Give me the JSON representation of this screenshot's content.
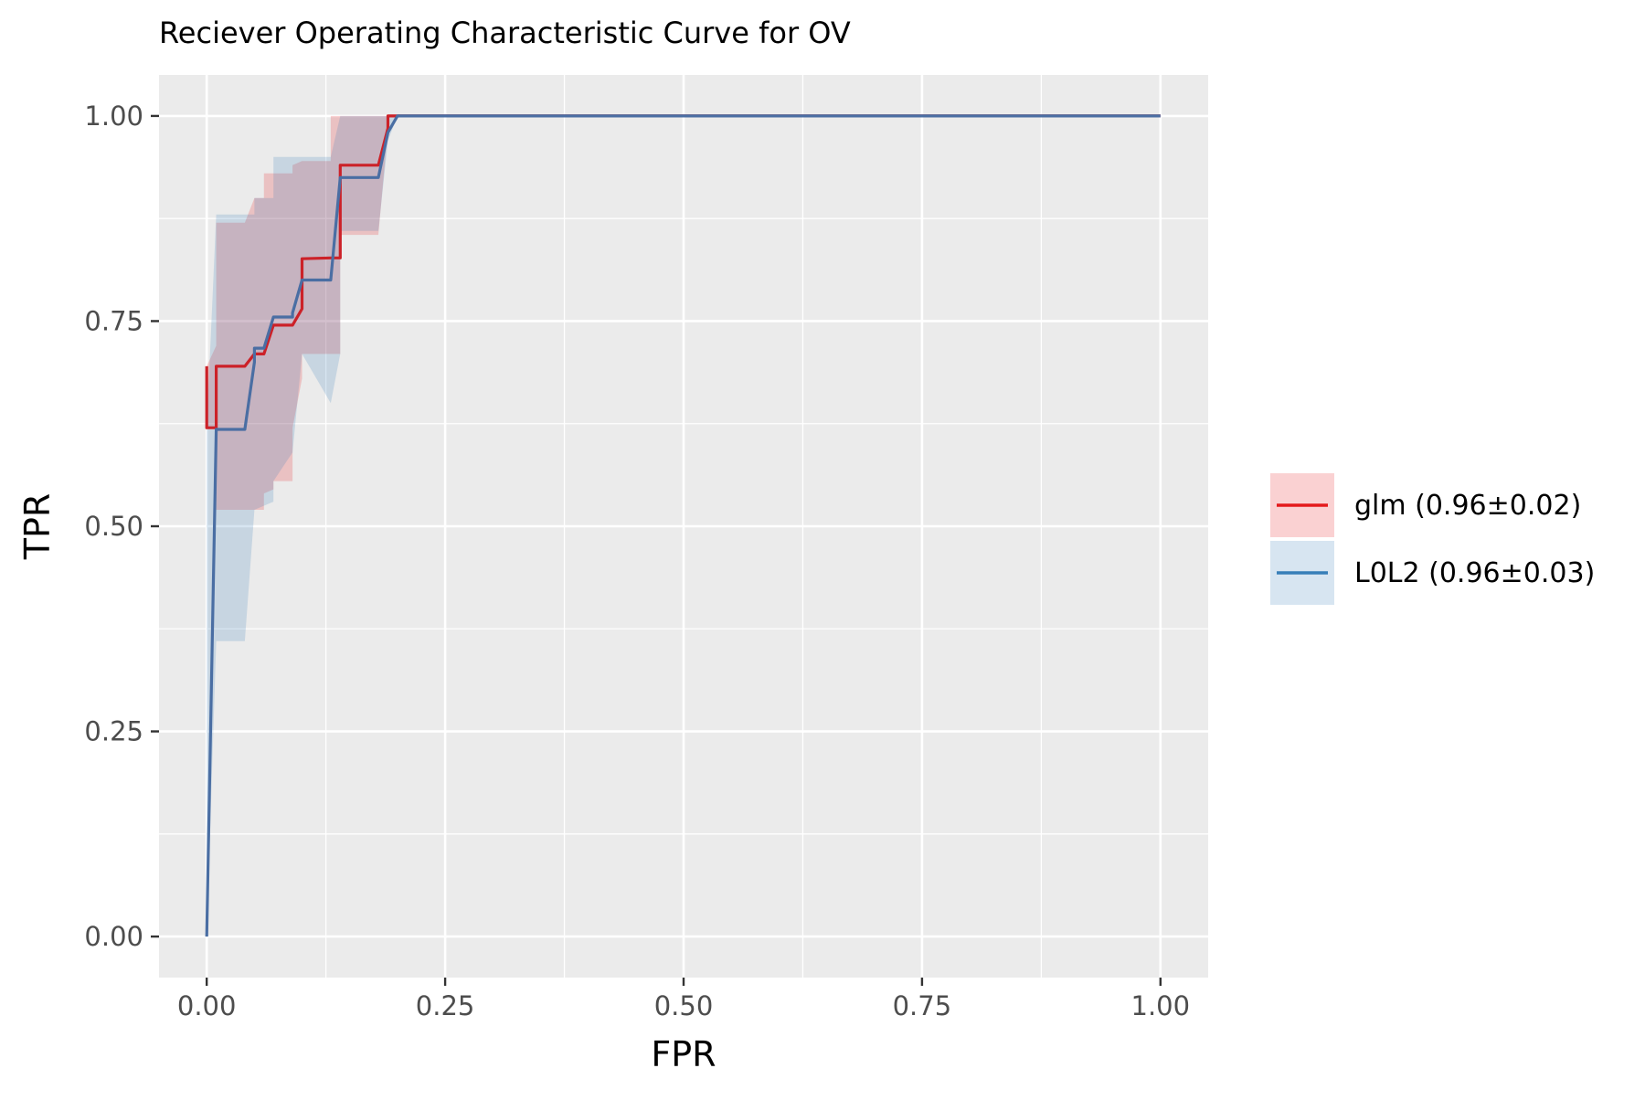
{
  "chart_data": {
    "type": "line",
    "title": "Reciever Operating Characteristic Curve for OV",
    "xlabel": "FPR",
    "ylabel": "TPR",
    "xlim": [
      -0.05,
      1.05
    ],
    "ylim": [
      -0.05,
      1.05
    ],
    "xticks": [
      0,
      0.25,
      0.5,
      0.75,
      1.0
    ],
    "xtick_labels": [
      "0.00",
      "0.25",
      "0.50",
      "0.75",
      "1.00"
    ],
    "yticks": [
      0,
      0.25,
      0.5,
      0.75,
      1.0
    ],
    "ytick_labels": [
      "0.00",
      "0.25",
      "0.50",
      "0.75",
      "1.00"
    ],
    "grid": true,
    "legend_position": "right",
    "series": [
      {
        "name": "glm (0.96±0.02)",
        "color": "#e41a1c",
        "x": [
          0,
          0,
          0.01,
          0.01,
          0.04,
          0.05,
          0.05,
          0.06,
          0.07,
          0.07,
          0.09,
          0.09,
          0.1,
          0.1,
          0.13,
          0.13,
          0.14,
          0.14,
          0.18,
          0.18,
          0.19,
          0.19,
          0.2,
          1.0
        ],
        "y": [
          0.695,
          0.62,
          0.62,
          0.695,
          0.695,
          0.71,
          0.71,
          0.71,
          0.745,
          0.745,
          0.745,
          0.745,
          0.765,
          0.826,
          0.827,
          0.827,
          0.827,
          0.94,
          0.94,
          0.94,
          0.985,
          1.0,
          1.0,
          1.0
        ],
        "band_x": [
          0,
          0.01,
          0.01,
          0.04,
          0.04,
          0.05,
          0.05,
          0.06,
          0.06,
          0.07,
          0.07,
          0.09,
          0.09,
          0.1,
          0.1,
          0.13,
          0.13,
          0.14,
          0.14,
          0.18,
          0.18,
          0.19,
          0.19,
          0.2,
          1.0
        ],
        "band_lower": [
          0.62,
          0.62,
          0.52,
          0.52,
          0.52,
          0.52,
          0.52,
          0.52,
          0.54,
          0.545,
          0.555,
          0.555,
          0.62,
          0.68,
          0.71,
          0.71,
          0.71,
          0.71,
          0.855,
          0.855,
          0.855,
          0.985,
          1.0,
          1.0,
          1.0
        ],
        "band_upper": [
          0.695,
          0.72,
          0.87,
          0.87,
          0.87,
          0.9,
          0.9,
          0.9,
          0.93,
          0.93,
          0.93,
          0.93,
          0.94,
          0.945,
          0.945,
          0.945,
          1.0,
          1.0,
          1.0,
          1.0,
          1.0,
          1.0,
          1.0,
          1.0,
          1.0
        ]
      },
      {
        "name": "L0L2 (0.96±0.03)",
        "color": "#377eb8",
        "x": [
          0,
          0.01,
          0.04,
          0.05,
          0.05,
          0.06,
          0.07,
          0.07,
          0.09,
          0.09,
          0.1,
          0.1,
          0.13,
          0.13,
          0.14,
          0.14,
          0.18,
          0.19,
          0.2,
          1.0
        ],
        "y": [
          0,
          0.618,
          0.618,
          0.7,
          0.717,
          0.717,
          0.755,
          0.755,
          0.755,
          0.76,
          0.8,
          0.8,
          0.8,
          0.8,
          0.925,
          0.925,
          0.925,
          0.98,
          1.0,
          1.0
        ],
        "band_x": [
          0,
          0.01,
          0.01,
          0.04,
          0.04,
          0.05,
          0.05,
          0.07,
          0.07,
          0.09,
          0.09,
          0.1,
          0.1,
          0.13,
          0.13,
          0.14,
          0.14,
          0.18,
          0.18,
          0.19,
          0.2,
          1.0
        ],
        "band_lower": [
          0,
          0.36,
          0.36,
          0.36,
          0.36,
          0.52,
          0.52,
          0.53,
          0.555,
          0.59,
          0.59,
          0.71,
          0.71,
          0.65,
          0.65,
          0.71,
          0.86,
          0.86,
          0.86,
          0.97,
          1.0,
          1.0
        ],
        "band_upper": [
          0.62,
          0.88,
          0.88,
          0.88,
          0.88,
          0.88,
          0.9,
          0.9,
          0.95,
          0.95,
          0.95,
          0.95,
          0.95,
          0.95,
          0.95,
          1.0,
          1.0,
          1.0,
          1.0,
          1.0,
          1.0,
          1.0
        ]
      }
    ]
  }
}
